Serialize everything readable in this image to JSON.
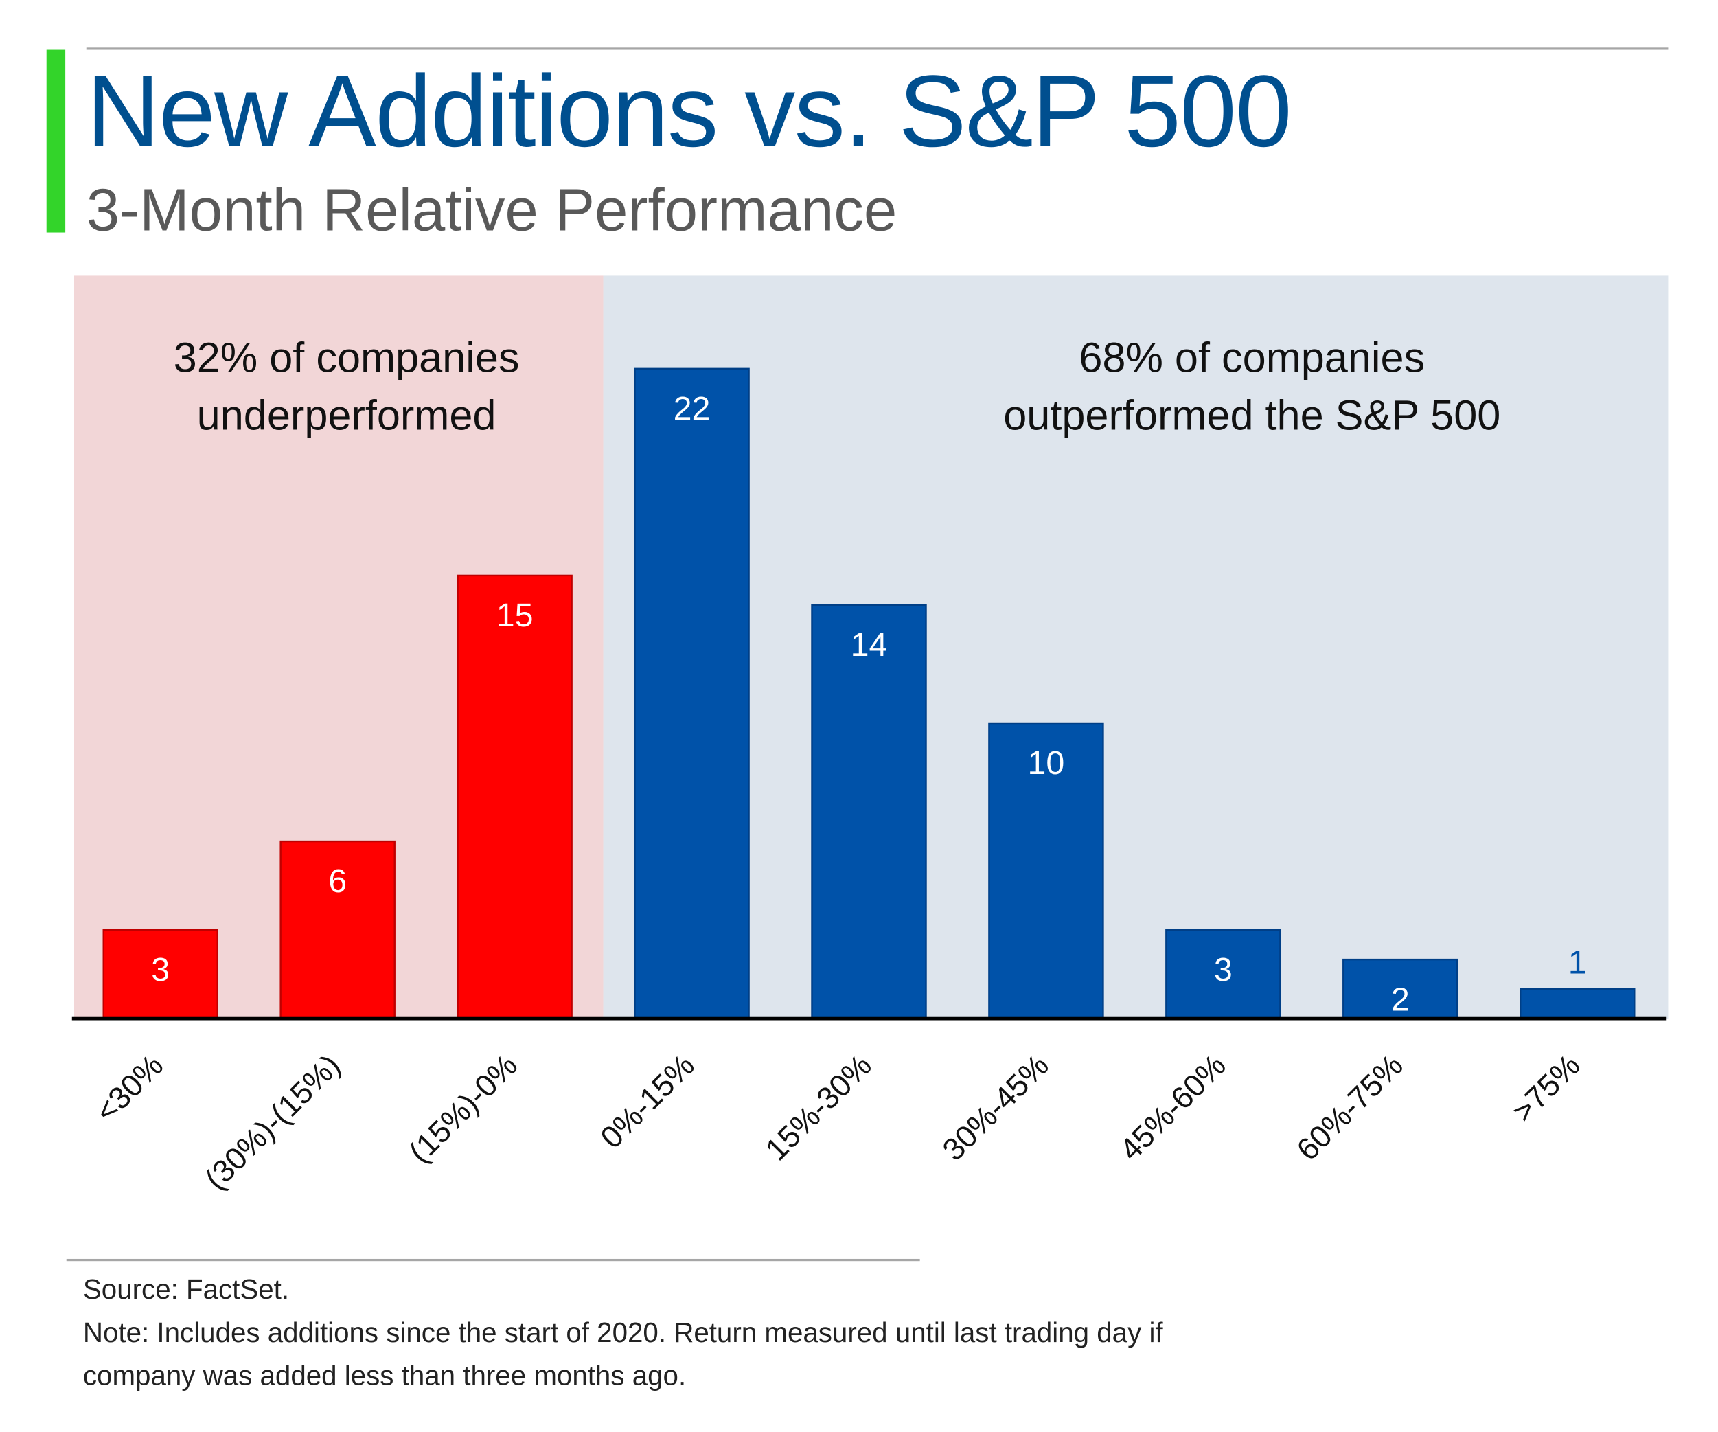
{
  "header": {
    "title": "New Additions vs. S&P 500",
    "subtitle": "3-Month Relative Performance"
  },
  "colors": {
    "accent_bar": "#33d42a",
    "title": "#004f8f",
    "under_bg": "#f2d6d7",
    "over_bg": "#dee5ed",
    "under_bar": "#ff0000",
    "over_bar": "#0052a9"
  },
  "chart_data": {
    "type": "bar",
    "title": "New Additions vs. S&P 500",
    "subtitle": "3-Month Relative Performance",
    "xlabel": "",
    "ylabel": "",
    "categories": [
      "<30%",
      "(30%)-(15%)",
      "(15%)-0%",
      "0%-15%",
      "15%-30%",
      "30%-45%",
      "45%-60%",
      "60%-75%",
      ">75%"
    ],
    "values": [
      3,
      6,
      15,
      22,
      14,
      10,
      3,
      2,
      1
    ],
    "groups": [
      "under",
      "under",
      "under",
      "over",
      "over",
      "over",
      "over",
      "over",
      "over"
    ],
    "ylim": [
      0,
      22
    ],
    "grid": false,
    "annotations": [
      {
        "region": "under",
        "lines": [
          "32% of companies",
          "underperformed"
        ]
      },
      {
        "region": "over",
        "lines": [
          "68% of companies",
          "outperformed the S&P 500"
        ]
      }
    ]
  },
  "footer": {
    "source": "Source: FactSet.",
    "note_lines": [
      "Note: Includes additions since the start of 2020. Return measured until last trading day if",
      "company was added less than three months ago."
    ]
  }
}
